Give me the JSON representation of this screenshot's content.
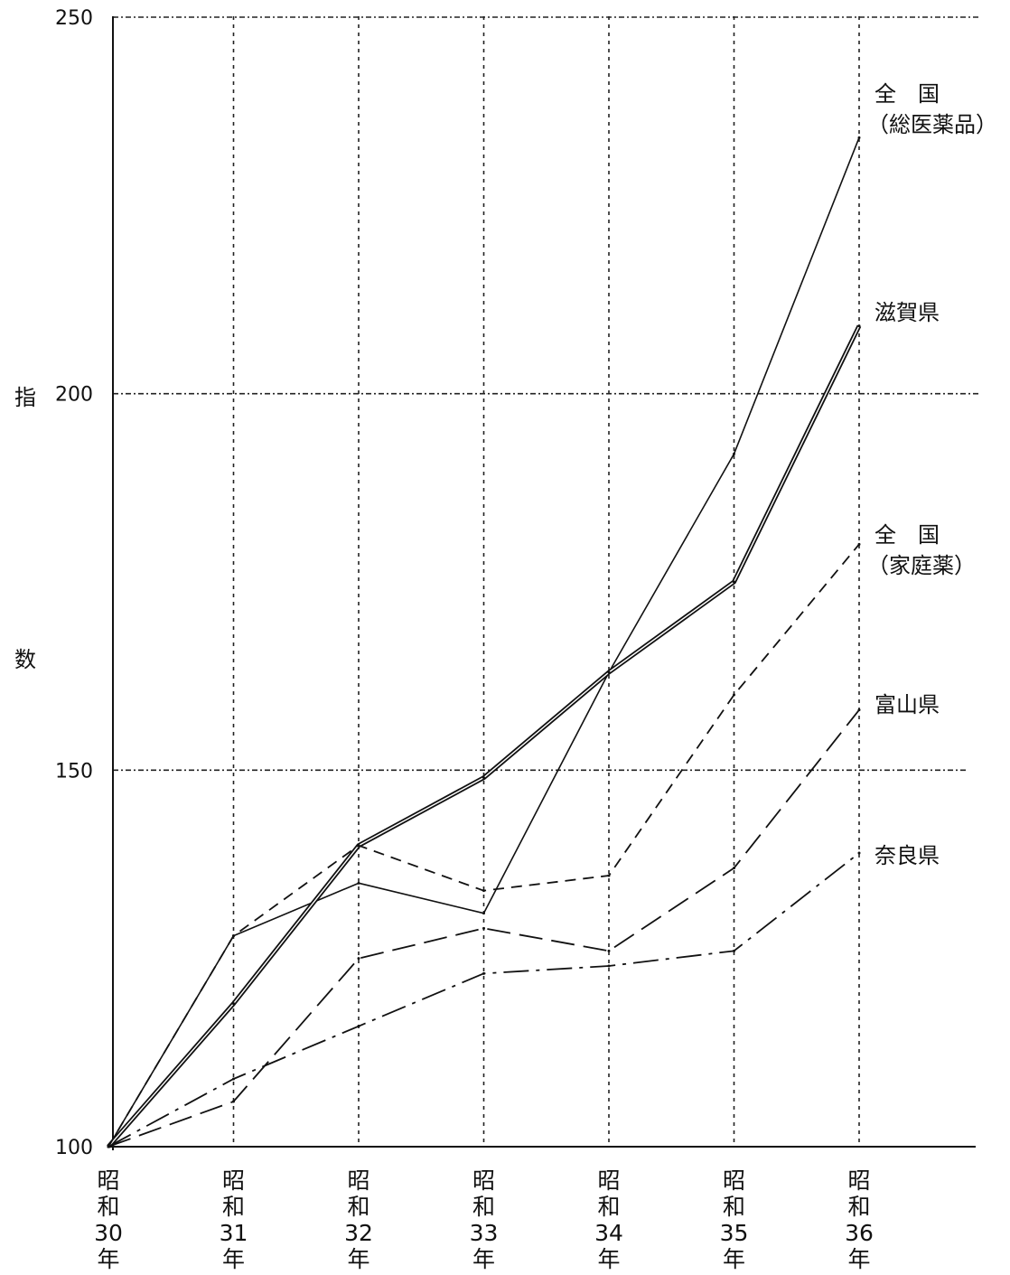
{
  "chart_data": {
    "type": "line",
    "ylabel": "指数",
    "ylim": [
      100,
      250
    ],
    "yticks": [
      "100",
      "150",
      "200",
      "250"
    ],
    "categories": [
      "昭和30年",
      "昭和31年",
      "昭和32年",
      "昭和33年",
      "昭和34年",
      "昭和35年",
      "昭和36年"
    ],
    "series": [
      {
        "name": "全 国（総医薬品）",
        "style": "thin-solid",
        "values": [
          100,
          128,
          135,
          131,
          163,
          192,
          234
        ]
      },
      {
        "name": "滋賀県",
        "style": "double-solid",
        "values": [
          100,
          119,
          140,
          149,
          163,
          175,
          209
        ]
      },
      {
        "name": "全 国（家庭薬）",
        "style": "short-dash",
        "values": [
          100,
          128,
          140,
          134,
          136,
          160,
          180
        ]
      },
      {
        "name": "富山県",
        "style": "long-dash",
        "values": [
          100,
          106,
          125,
          129,
          126,
          137,
          158
        ]
      },
      {
        "name": "奈良県",
        "style": "dash-dot",
        "values": [
          100,
          109,
          116,
          123,
          124,
          126,
          139
        ]
      }
    ],
    "grid": true
  }
}
